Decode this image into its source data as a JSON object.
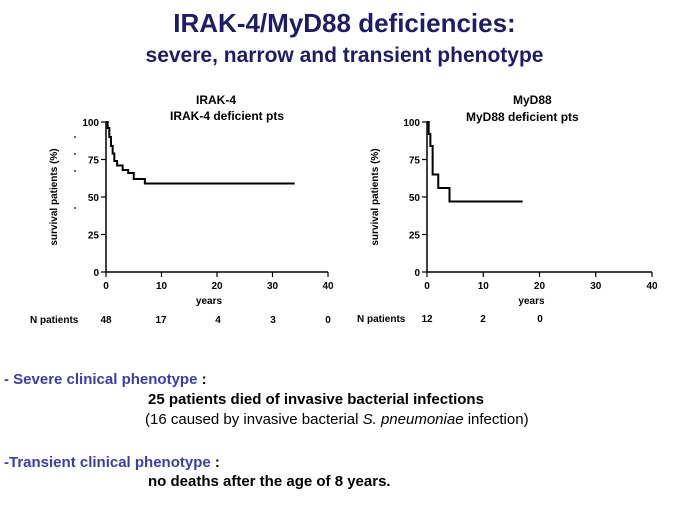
{
  "slide": {
    "title": "IRAK-4/MyD88 deficiencies:",
    "subtitle": "severe, narrow and transient phenotype"
  },
  "chart_data": [
    {
      "type": "line",
      "title": "IRAK-4",
      "subtitle": "IRAK-4 deficient pts",
      "xlabel": "years",
      "ylabel": "survival  patients (%)",
      "xlim": [
        0,
        40
      ],
      "ylim": [
        0,
        100
      ],
      "xticks": [
        "0",
        "10",
        "20",
        "30",
        "40"
      ],
      "yticks": [
        "0",
        "25",
        "50",
        "75",
        "100"
      ],
      "step": true,
      "series": [
        {
          "x": [
            0,
            0.3,
            0.6,
            0.9,
            1.2,
            1.5,
            2,
            3,
            4,
            5,
            7,
            34
          ],
          "y": [
            100,
            96,
            90,
            84,
            79,
            74,
            71,
            68,
            66,
            62,
            59,
            59
          ]
        }
      ],
      "n_patients_label": "N patients",
      "n_patients": [
        "48",
        "17",
        "4",
        "3",
        "0"
      ]
    },
    {
      "type": "line",
      "title": "MyD88",
      "subtitle": "MyD88 deficient pts",
      "xlabel": "years",
      "ylabel": "survival  patients (%)",
      "xlim": [
        0,
        40
      ],
      "ylim": [
        0,
        100
      ],
      "xticks": [
        "0",
        "10",
        "20",
        "30",
        "40"
      ],
      "yticks": [
        "0",
        "25",
        "50",
        "75",
        "100"
      ],
      "step": true,
      "series": [
        {
          "x": [
            0,
            0.3,
            0.6,
            1,
            2,
            4,
            17
          ],
          "y": [
            100,
            92,
            84,
            65,
            56,
            47,
            47
          ]
        }
      ],
      "n_patients_label": "N patients",
      "n_patients": [
        "12",
        "2",
        "0"
      ]
    }
  ],
  "notes": {
    "severe_label": "Severe clinical phenotype",
    "severe_prefix": "- ",
    "severe_suffix": " :",
    "severe_line1": "25 patients died of invasive bacterial infections",
    "severe_line2_pre": "(16 caused by invasive bacterial ",
    "severe_line2_italic": "S. pneumoniae",
    "severe_line2_post": " infection)",
    "transient_prefix": "-",
    "transient_label": "Transient clinical phenotype",
    "transient_suffix": " :",
    "transient_line1": "no deaths after the age of 8 years."
  },
  "colors": {
    "title": "#1c1c6b",
    "accent": "#3b3bb5",
    "line": "#000000"
  }
}
